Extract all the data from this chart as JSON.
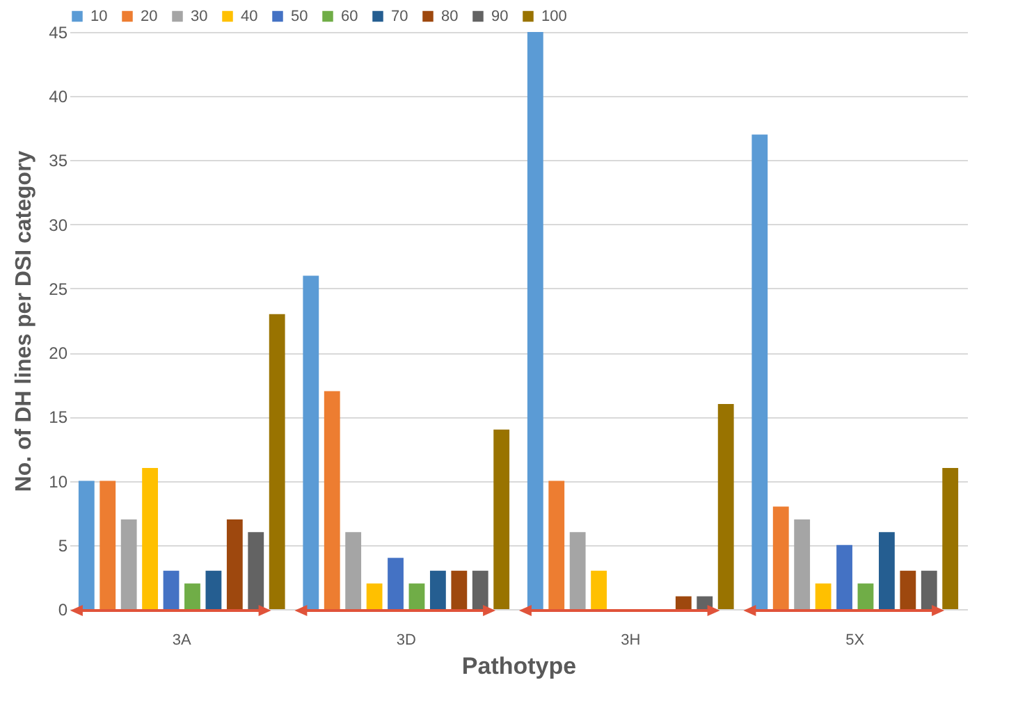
{
  "chart_data": {
    "type": "bar",
    "xlabel": "Pathotype",
    "ylabel": "No. of DH lines per DSI category",
    "categories": [
      "3A",
      "3D",
      "3H",
      "5X"
    ],
    "series": [
      {
        "name": "10",
        "color": "#5b9bd5",
        "values": [
          10,
          26,
          45,
          37
        ]
      },
      {
        "name": "20",
        "color": "#ed7d31",
        "values": [
          10,
          17,
          10,
          8
        ]
      },
      {
        "name": "30",
        "color": "#a5a5a5",
        "values": [
          7,
          6,
          6,
          7
        ]
      },
      {
        "name": "40",
        "color": "#ffc000",
        "values": [
          11,
          2,
          3,
          2
        ]
      },
      {
        "name": "50",
        "color": "#4472c4",
        "values": [
          3,
          4,
          0,
          5
        ]
      },
      {
        "name": "60",
        "color": "#70ad47",
        "values": [
          2,
          2,
          0,
          2
        ]
      },
      {
        "name": "70",
        "color": "#255e91",
        "values": [
          3,
          3,
          0,
          6
        ]
      },
      {
        "name": "80",
        "color": "#9e480e",
        "values": [
          7,
          3,
          1,
          3
        ]
      },
      {
        "name": "90",
        "color": "#636363",
        "values": [
          6,
          3,
          1,
          3
        ]
      },
      {
        "name": "100",
        "color": "#997300",
        "values": [
          23,
          14,
          16,
          11
        ]
      }
    ],
    "ylim": [
      0,
      45
    ],
    "yticks": [
      0,
      5,
      10,
      15,
      20,
      25,
      30,
      35,
      40,
      45
    ],
    "grid": "y",
    "legend": "top"
  }
}
